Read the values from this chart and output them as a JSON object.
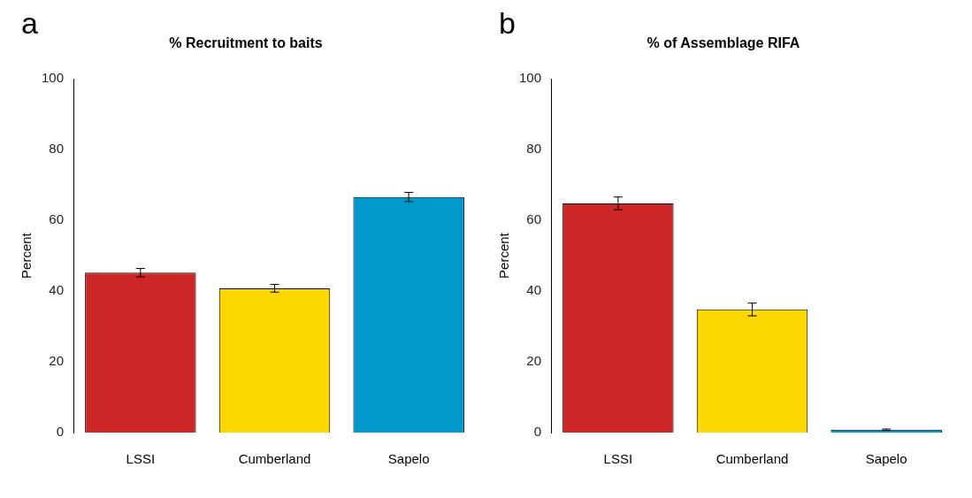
{
  "chart_data": [
    {
      "type": "bar",
      "title": "% Recruitment to baits",
      "ylabel": "Percent",
      "annotations": [
        "a"
      ],
      "categories": [
        "LSSI",
        "Cumberland",
        "Sapelo"
      ],
      "values": [
        45.2,
        40.8,
        66.6
      ],
      "errors": [
        1.2,
        1.1,
        1.3
      ],
      "colors": [
        "#cc2627",
        "#fdd800",
        "#0099cc"
      ],
      "ylim": [
        0,
        100
      ],
      "yticks": [
        0,
        20,
        40,
        60,
        80,
        100
      ],
      "grid": false,
      "legend": false
    },
    {
      "type": "bar",
      "title": "% of Assemblage RIFA",
      "ylabel": "Percent",
      "annotations": [
        "b"
      ],
      "categories": [
        "LSSI",
        "Cumberland",
        "Sapelo"
      ],
      "values": [
        64.8,
        34.8,
        0.8
      ],
      "errors": [
        1.8,
        1.8,
        0.2
      ],
      "colors": [
        "#cc2627",
        "#fdd800",
        "#0099cc"
      ],
      "ylim": [
        0,
        100
      ],
      "yticks": [
        0,
        20,
        40,
        60,
        80,
        100
      ],
      "grid": false,
      "legend": false
    }
  ]
}
